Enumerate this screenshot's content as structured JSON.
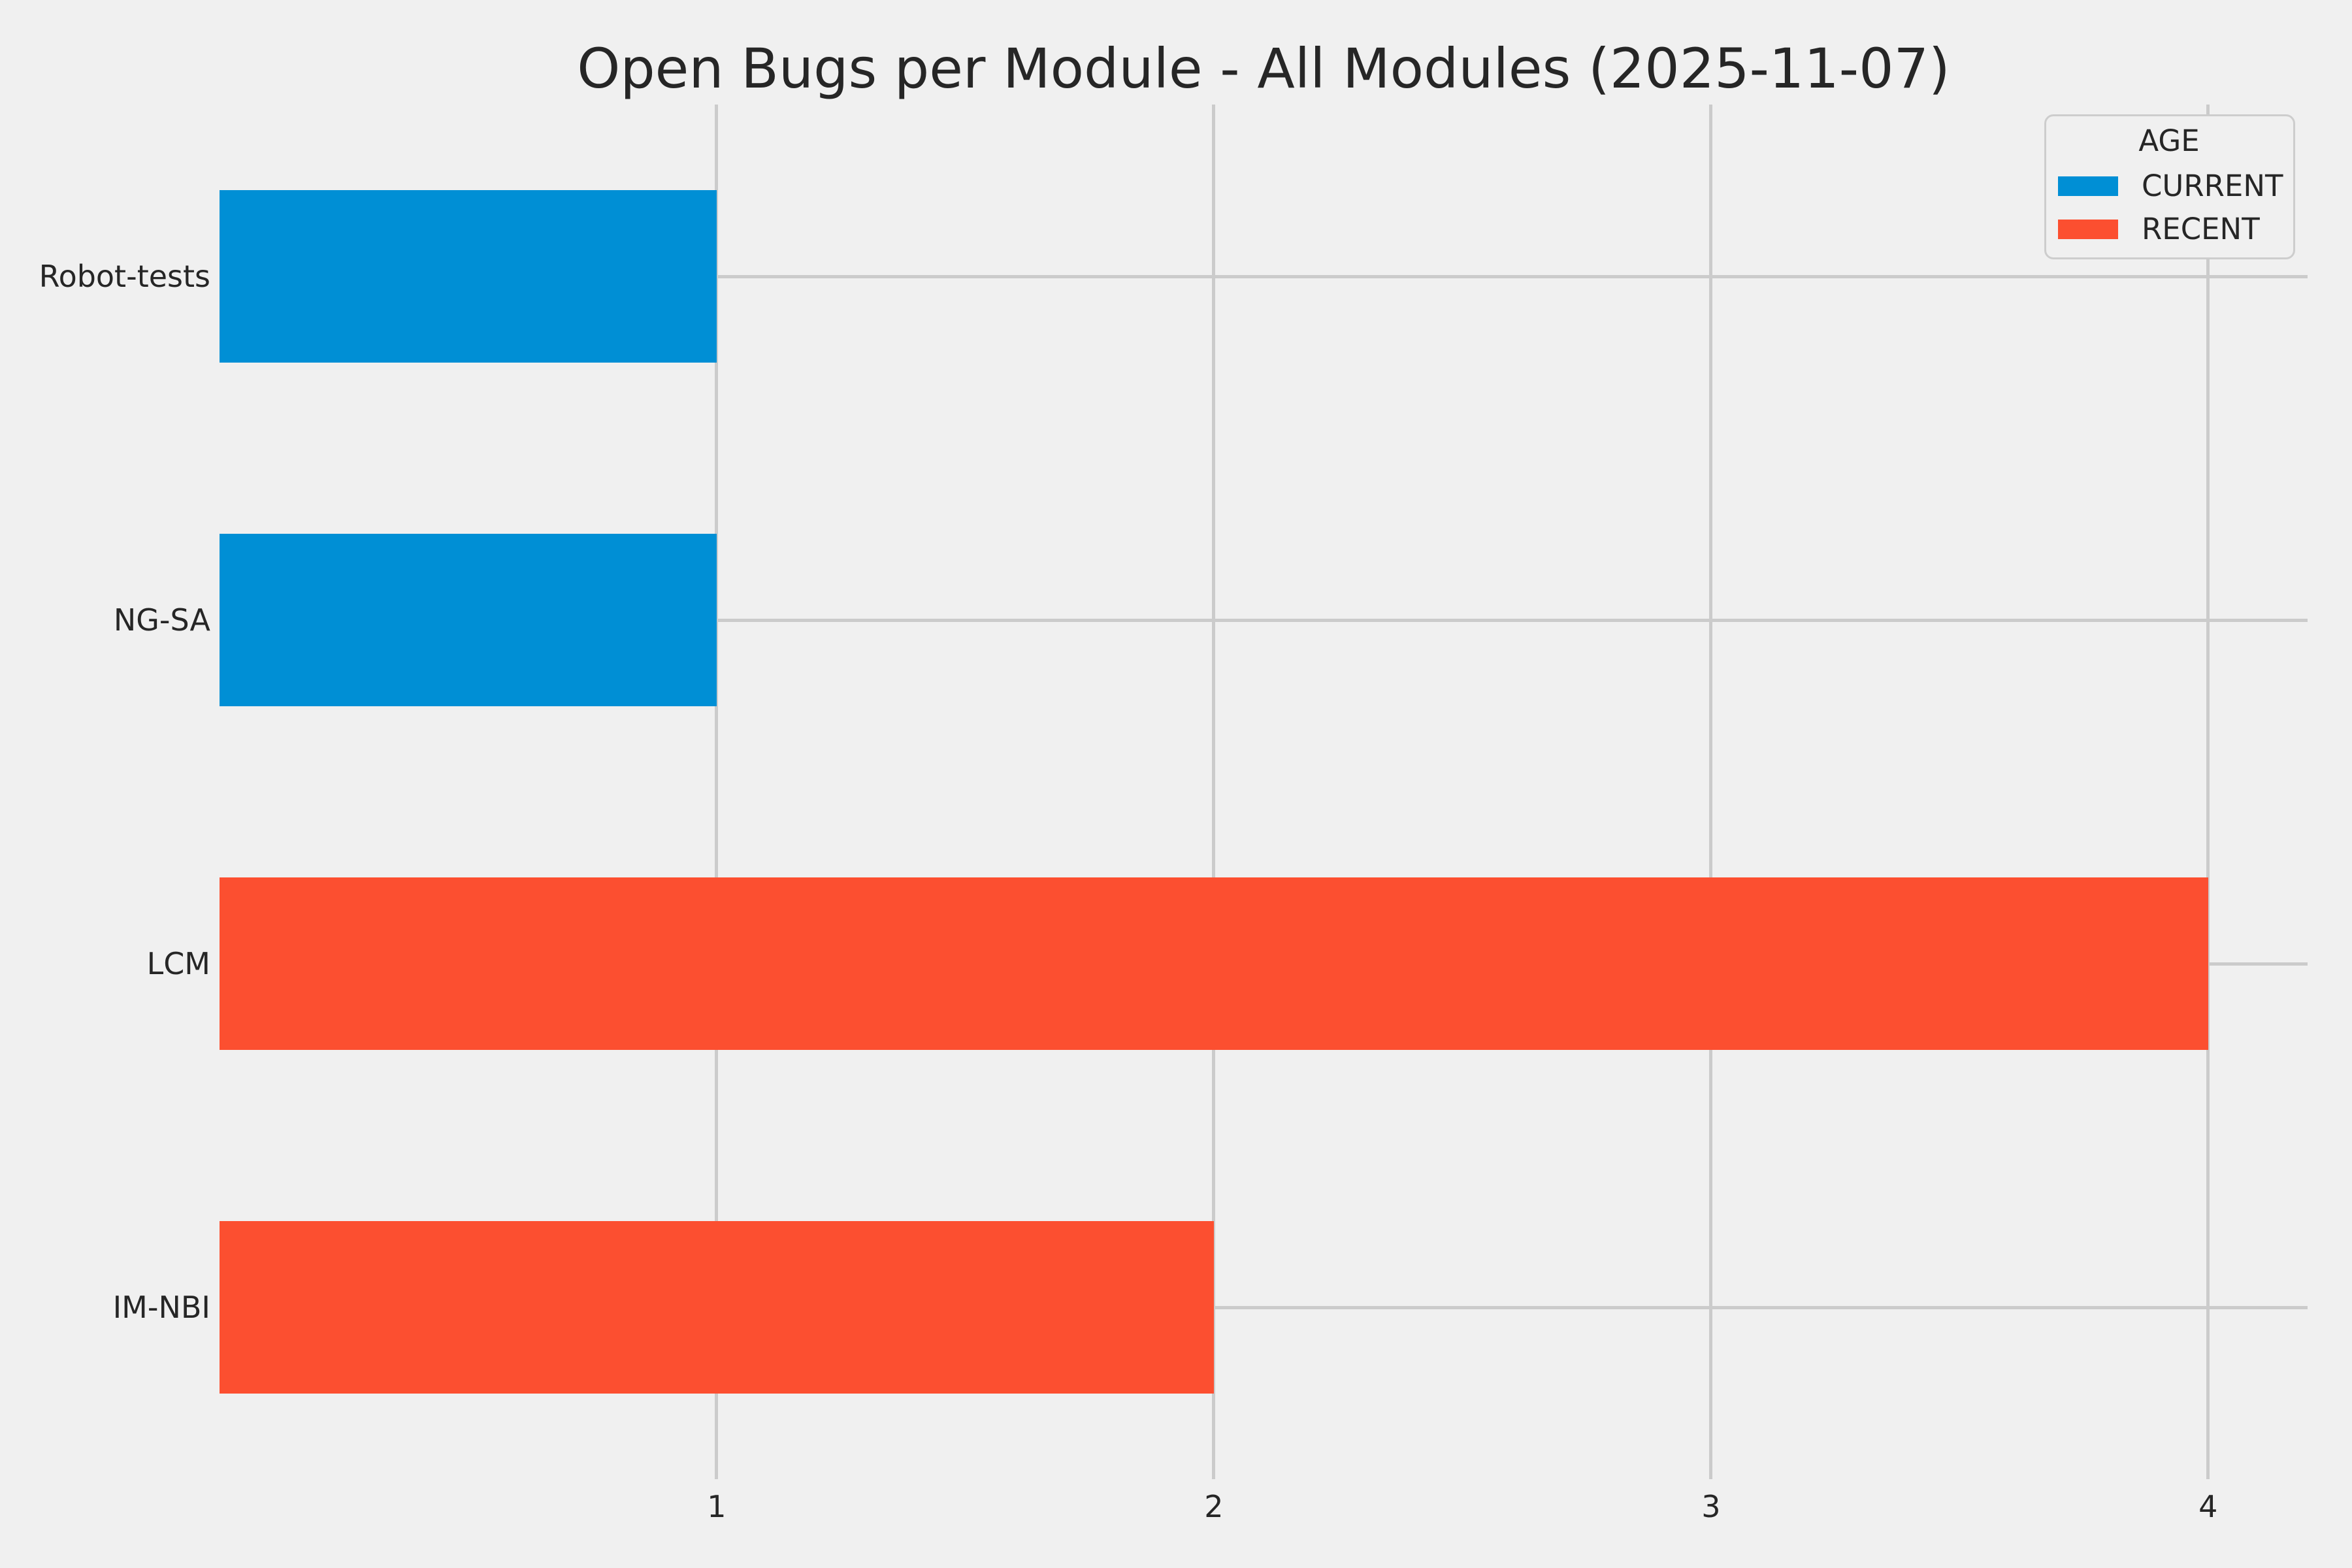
{
  "chart_data": {
    "type": "bar",
    "orientation": "horizontal",
    "title": "Open Bugs per Module - All Modules (2025-11-07)",
    "categories": [
      "Robot-tests",
      "NG-SA",
      "LCM",
      "IM-NBI"
    ],
    "values": [
      1,
      1,
      4,
      2
    ],
    "bar_series": [
      "CURRENT",
      "CURRENT",
      "RECENT",
      "RECENT"
    ],
    "series": [
      {
        "name": "CURRENT",
        "color": "#008fd5",
        "values": [
          1,
          1,
          0,
          0
        ]
      },
      {
        "name": "RECENT",
        "color": "#fc4f30",
        "values": [
          0,
          0,
          4,
          2
        ]
      }
    ],
    "xlabel": "",
    "ylabel": "",
    "xlim": [
      0,
      4.2
    ],
    "x_ticks": [
      "1",
      "2",
      "3",
      "4"
    ],
    "grid": true,
    "legend": {
      "title": "AGE",
      "position": "upper-right",
      "entries": [
        {
          "label": "CURRENT",
          "color": "#008fd5"
        },
        {
          "label": "RECENT",
          "color": "#fc4f30"
        }
      ]
    },
    "style": {
      "background": "#f0f0f0",
      "gridline_color": "#cbcbcb",
      "text_color": "#262626",
      "legend_border_color": "#cdcdcd"
    }
  }
}
